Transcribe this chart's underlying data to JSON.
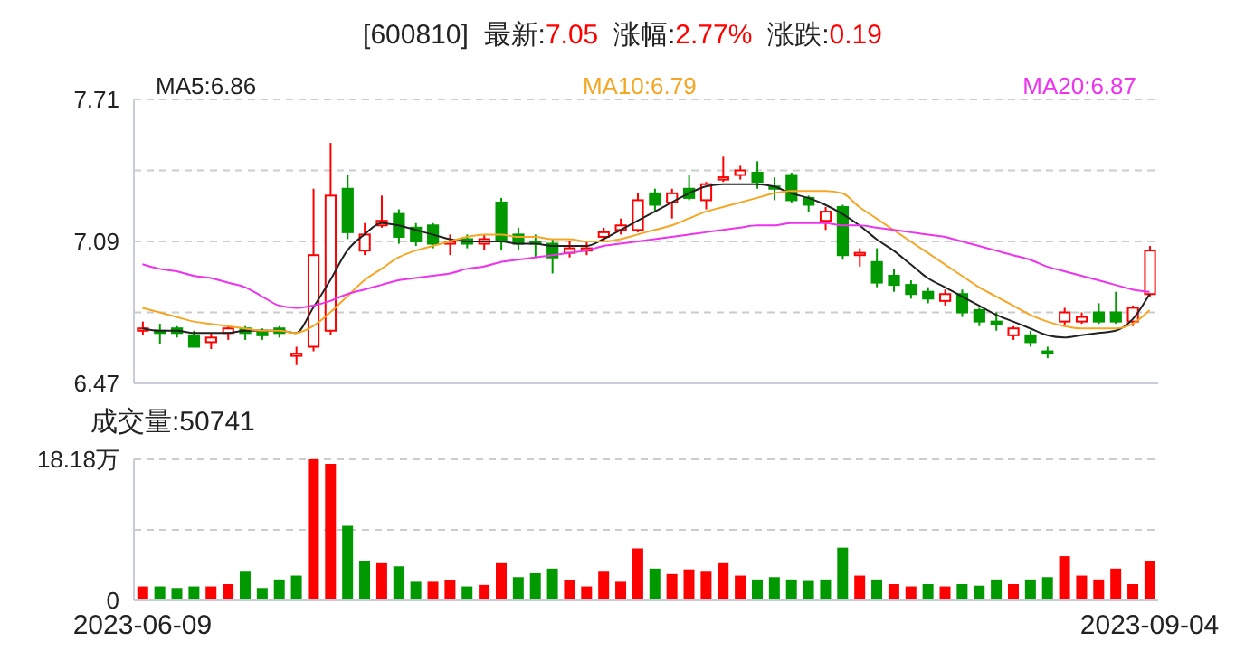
{
  "chart_data": [
    {
      "type": "candlestick",
      "title": "[600810]  最新:7.05  涨幅:2.77%  涨跌:0.19",
      "categories": [
        "2023-06-09",
        null,
        null,
        null,
        null,
        null,
        null,
        null,
        null,
        null,
        null,
        null,
        null,
        null,
        null,
        null,
        null,
        null,
        null,
        null,
        null,
        null,
        null,
        null,
        null,
        null,
        null,
        null,
        null,
        null,
        null,
        null,
        null,
        null,
        null,
        null,
        null,
        null,
        null,
        null,
        null,
        null,
        null,
        null,
        null,
        null,
        null,
        null,
        null,
        null,
        null,
        null,
        null,
        null,
        null,
        null,
        null,
        null,
        null,
        "2023-09-04"
      ],
      "ohlc": [
        [
          6.7,
          6.74,
          6.68,
          6.71
        ],
        [
          6.7,
          6.73,
          6.64,
          6.69
        ],
        [
          6.71,
          6.72,
          6.67,
          6.69
        ],
        [
          6.68,
          6.7,
          6.63,
          6.63
        ],
        [
          6.65,
          6.69,
          6.62,
          6.67
        ],
        [
          6.69,
          6.72,
          6.66,
          6.71
        ],
        [
          6.71,
          6.72,
          6.66,
          6.69
        ],
        [
          6.7,
          6.71,
          6.66,
          6.68
        ],
        [
          6.71,
          6.72,
          6.67,
          6.69
        ],
        [
          6.59,
          6.63,
          6.55,
          6.6
        ],
        [
          6.63,
          7.32,
          6.61,
          7.03
        ],
        [
          6.7,
          7.52,
          6.68,
          7.29
        ],
        [
          7.32,
          7.38,
          7.1,
          7.13
        ],
        [
          7.05,
          7.17,
          7.03,
          7.12
        ],
        [
          7.16,
          7.29,
          7.15,
          7.18
        ],
        [
          7.21,
          7.23,
          7.08,
          7.11
        ],
        [
          7.15,
          7.17,
          7.07,
          7.09
        ],
        [
          7.16,
          7.17,
          7.06,
          7.08
        ],
        [
          7.08,
          7.12,
          7.03,
          7.09
        ],
        [
          7.1,
          7.12,
          7.06,
          7.08
        ],
        [
          7.08,
          7.12,
          7.05,
          7.1
        ],
        [
          7.26,
          7.28,
          7.05,
          7.09
        ],
        [
          7.12,
          7.15,
          7.05,
          7.08
        ],
        [
          7.09,
          7.12,
          7.02,
          7.08
        ],
        [
          7.08,
          7.1,
          6.95,
          7.02
        ],
        [
          7.04,
          7.09,
          7.02,
          7.06
        ],
        [
          7.05,
          7.09,
          7.03,
          7.06
        ],
        [
          7.11,
          7.15,
          7.09,
          7.13
        ],
        [
          7.14,
          7.19,
          7.12,
          7.16
        ],
        [
          7.14,
          7.3,
          7.13,
          7.27
        ],
        [
          7.3,
          7.32,
          7.22,
          7.25
        ],
        [
          7.26,
          7.32,
          7.19,
          7.3
        ],
        [
          7.32,
          7.38,
          7.27,
          7.28
        ],
        [
          7.27,
          7.35,
          7.23,
          7.34
        ],
        [
          7.36,
          7.46,
          7.35,
          7.37
        ],
        [
          7.38,
          7.42,
          7.36,
          7.4
        ],
        [
          7.39,
          7.44,
          7.32,
          7.35
        ],
        [
          7.33,
          7.37,
          7.27,
          7.32
        ],
        [
          7.38,
          7.39,
          7.26,
          7.27
        ],
        [
          7.28,
          7.29,
          7.22,
          7.25
        ],
        [
          7.18,
          7.24,
          7.14,
          7.22
        ],
        [
          7.24,
          7.25,
          7.01,
          7.03
        ],
        [
          7.03,
          7.06,
          6.98,
          7.04
        ],
        [
          7.0,
          7.06,
          6.89,
          6.91
        ],
        [
          6.94,
          6.97,
          6.87,
          6.9
        ],
        [
          6.9,
          6.92,
          6.84,
          6.86
        ],
        [
          6.87,
          6.89,
          6.82,
          6.84
        ],
        [
          6.83,
          6.88,
          6.81,
          6.86
        ],
        [
          6.86,
          6.88,
          6.76,
          6.78
        ],
        [
          6.79,
          6.8,
          6.72,
          6.74
        ],
        [
          6.74,
          6.78,
          6.7,
          6.73
        ],
        [
          6.68,
          6.72,
          6.66,
          6.71
        ],
        [
          6.68,
          6.7,
          6.63,
          6.65
        ],
        [
          6.61,
          6.63,
          6.58,
          6.6
        ],
        [
          6.74,
          6.8,
          6.72,
          6.78
        ],
        [
          6.74,
          6.78,
          6.73,
          6.76
        ],
        [
          6.78,
          6.82,
          6.73,
          6.74
        ],
        [
          6.78,
          6.87,
          6.73,
          6.74
        ],
        [
          6.74,
          6.81,
          6.72,
          6.8
        ],
        [
          6.86,
          7.07,
          6.85,
          7.05
        ]
      ],
      "colors": [
        "#ff0000",
        "#009900",
        "#009900",
        "#009900",
        "#ff0000",
        "#ff0000",
        "#009900",
        "#009900",
        "#009900",
        "#ff0000",
        "#ff0000",
        "#ff0000",
        "#009900",
        "#ff0000",
        "#ff0000",
        "#009900",
        "#009900",
        "#009900",
        "#ff0000",
        "#009900",
        "#ff0000",
        "#009900",
        "#009900",
        "#009900",
        "#009900",
        "#ff0000",
        "#ff0000",
        "#ff0000",
        "#ff0000",
        "#ff0000",
        "#009900",
        "#ff0000",
        "#009900",
        "#ff0000",
        "#ff0000",
        "#ff0000",
        "#009900",
        "#009900",
        "#009900",
        "#009900",
        "#ff0000",
        "#009900",
        "#ff0000",
        "#009900",
        "#009900",
        "#009900",
        "#009900",
        "#ff0000",
        "#009900",
        "#009900",
        "#009900",
        "#ff0000",
        "#009900",
        "#009900",
        "#ff0000",
        "#ff0000",
        "#009900",
        "#009900",
        "#ff0000",
        "#ff0000"
      ],
      "series": [
        {
          "type": "line",
          "name": "MA5:6.86",
          "color": "#222222",
          "values": [
            6.71,
            6.7,
            6.7,
            6.69,
            6.69,
            6.69,
            6.7,
            6.7,
            6.7,
            6.69,
            6.8,
            6.92,
            7.05,
            7.12,
            7.17,
            7.16,
            7.14,
            7.12,
            7.1,
            7.09,
            7.09,
            7.09,
            7.08,
            7.08,
            7.07,
            7.07,
            7.07,
            7.1,
            7.14,
            7.18,
            7.22,
            7.26,
            7.3,
            7.33,
            7.34,
            7.34,
            7.34,
            7.33,
            7.3,
            7.28,
            7.25,
            7.21,
            7.16,
            7.1,
            7.05,
            6.99,
            6.93,
            6.89,
            6.85,
            6.81,
            6.77,
            6.74,
            6.71,
            6.68,
            6.67,
            6.68,
            6.69,
            6.7,
            6.75,
            6.86
          ]
        },
        {
          "type": "line",
          "name": "MA10:6.79",
          "color": "#f5a623",
          "values": [
            6.8,
            6.78,
            6.76,
            6.74,
            6.73,
            6.72,
            6.71,
            6.7,
            6.7,
            6.69,
            6.72,
            6.78,
            6.85,
            6.92,
            6.97,
            7.02,
            7.05,
            7.07,
            7.09,
            7.11,
            7.12,
            7.12,
            7.11,
            7.11,
            7.1,
            7.1,
            7.09,
            7.09,
            7.1,
            7.12,
            7.14,
            7.16,
            7.19,
            7.22,
            7.24,
            7.26,
            7.28,
            7.3,
            7.31,
            7.31,
            7.31,
            7.3,
            7.24,
            7.19,
            7.14,
            7.09,
            7.04,
            6.99,
            6.94,
            6.89,
            6.85,
            6.81,
            6.77,
            6.74,
            6.72,
            6.71,
            6.71,
            6.71,
            6.73,
            6.79
          ]
        },
        {
          "type": "line",
          "name": "MA20:6.87",
          "color": "#ee33ee",
          "values": [
            6.99,
            6.97,
            6.96,
            6.94,
            6.93,
            6.91,
            6.89,
            6.85,
            6.81,
            6.8,
            6.81,
            6.83,
            6.86,
            6.88,
            6.9,
            6.92,
            6.93,
            6.94,
            6.95,
            6.97,
            6.98,
            7.0,
            7.01,
            7.02,
            7.03,
            7.04,
            7.05,
            7.07,
            7.08,
            7.09,
            7.1,
            7.11,
            7.12,
            7.13,
            7.14,
            7.15,
            7.16,
            7.16,
            7.17,
            7.17,
            7.17,
            7.16,
            7.16,
            7.15,
            7.14,
            7.13,
            7.12,
            7.11,
            7.09,
            7.07,
            7.05,
            7.03,
            7.01,
            6.98,
            6.96,
            6.94,
            6.92,
            6.9,
            6.88,
            6.87
          ]
        }
      ],
      "ylim": [
        6.47,
        7.71
      ],
      "yticks": [
        6.47,
        {
          "value": 6.78,
          "label": null
        },
        7.09,
        {
          "value": 7.4,
          "label": null
        },
        7.71
      ],
      "grid": "y",
      "legend": "top",
      "tick_labels": "y"
    },
    {
      "type": "bar",
      "title": "成交量:50741",
      "categories": [
        "2023-06-09",
        null,
        null,
        null,
        null,
        null,
        null,
        null,
        null,
        null,
        null,
        null,
        null,
        null,
        null,
        null,
        null,
        null,
        null,
        null,
        null,
        null,
        null,
        null,
        null,
        null,
        null,
        null,
        null,
        null,
        null,
        null,
        null,
        null,
        null,
        null,
        null,
        null,
        null,
        null,
        null,
        null,
        null,
        null,
        null,
        null,
        null,
        null,
        null,
        null,
        null,
        null,
        null,
        null,
        null,
        null,
        null,
        null,
        null,
        "2023-09-04"
      ],
      "values": [
        1.8,
        1.8,
        1.6,
        1.8,
        1.8,
        2.1,
        3.7,
        1.6,
        2.7,
        3.2,
        18.18,
        17.6,
        9.6,
        5.1,
        4.8,
        4.4,
        2.4,
        2.4,
        2.6,
        1.8,
        2.0,
        4.8,
        3.0,
        3.5,
        4.1,
        2.6,
        1.8,
        3.7,
        2.4,
        6.7,
        4.1,
        3.4,
        4.0,
        3.7,
        4.8,
        3.2,
        2.7,
        3.0,
        2.7,
        2.5,
        2.7,
        6.8,
        3.2,
        2.7,
        2.1,
        1.8,
        2.1,
        1.8,
        2.1,
        1.9,
        2.7,
        2.1,
        2.7,
        3.0,
        5.7,
        3.2,
        2.7,
        4.1,
        2.1,
        5.07
      ],
      "colors": [
        "#ff0000",
        "#009900",
        "#009900",
        "#009900",
        "#ff0000",
        "#ff0000",
        "#009900",
        "#009900",
        "#009900",
        "#009900",
        "#ff0000",
        "#ff0000",
        "#009900",
        "#009900",
        "#ff0000",
        "#009900",
        "#009900",
        "#ff0000",
        "#ff0000",
        "#009900",
        "#ff0000",
        "#ff0000",
        "#009900",
        "#009900",
        "#009900",
        "#ff0000",
        "#ff0000",
        "#ff0000",
        "#ff0000",
        "#ff0000",
        "#009900",
        "#ff0000",
        "#ff0000",
        "#ff0000",
        "#ff0000",
        "#ff0000",
        "#009900",
        "#009900",
        "#009900",
        "#009900",
        "#009900",
        "#009900",
        "#ff0000",
        "#009900",
        "#ff0000",
        "#ff0000",
        "#009900",
        "#ff0000",
        "#009900",
        "#009900",
        "#009900",
        "#ff0000",
        "#009900",
        "#009900",
        "#ff0000",
        "#ff0000",
        "#ff0000",
        "#ff0000",
        "#ff0000",
        "#ff0000"
      ],
      "ylim": [
        0,
        18.18
      ],
      "yticks": [
        0,
        {
          "value": 9.09,
          "label": null
        },
        {
          "value": 18.18,
          "label": "18.18万"
        }
      ],
      "grid": "y"
    }
  ]
}
